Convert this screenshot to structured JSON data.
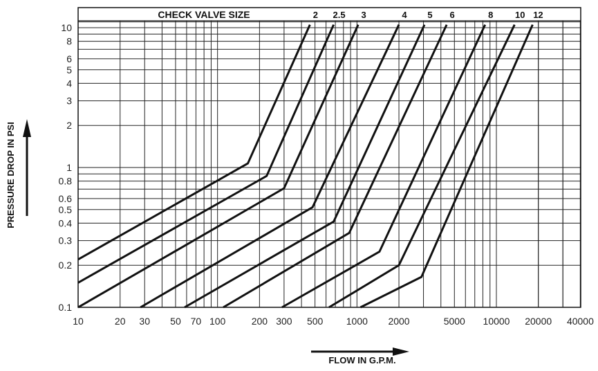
{
  "chart_data": {
    "type": "line",
    "title": "CHECK VALVE SIZE",
    "xlabel": "FLOW IN G.P.M.",
    "ylabel": "PRESSURE DROP IN PSI",
    "x_scale": "log",
    "y_scale": "log",
    "xlim": [
      10,
      40000
    ],
    "ylim": [
      0.1,
      13
    ],
    "x_ticks": [
      10,
      20,
      30,
      50,
      70,
      100,
      200,
      300,
      500,
      1000,
      2000,
      5000,
      10000,
      20000,
      40000
    ],
    "x_tick_labels": [
      "10",
      "20",
      "30",
      "50",
      "70",
      "100",
      "200",
      "300",
      "500",
      "1000",
      "2000",
      "5000",
      "10000",
      "20000",
      "40000"
    ],
    "y_ticks": [
      0.1,
      0.2,
      0.3,
      0.4,
      0.5,
      0.6,
      0.8,
      1,
      2,
      3,
      4,
      5,
      6,
      8,
      10
    ],
    "y_tick_labels": [
      "0.1",
      "0.2",
      "0.3",
      "0.4",
      "0.5",
      "0.6",
      "0.8",
      "1",
      "2",
      "3",
      "4",
      "5",
      "6",
      "8",
      "10"
    ],
    "grid": true,
    "series": [
      {
        "name": "2",
        "x": [
          10,
          165,
          460
        ],
        "y": [
          0.22,
          1.07,
          10.5
        ]
      },
      {
        "name": "2.5",
        "x": [
          10,
          225,
          680
        ],
        "y": [
          0.15,
          0.87,
          10.5
        ]
      },
      {
        "name": "3",
        "x": [
          10,
          300,
          1020
        ],
        "y": [
          0.1,
          0.71,
          10.5
        ]
      },
      {
        "name": "4",
        "x": [
          28,
          480,
          2000
        ],
        "y": [
          0.1,
          0.52,
          10.5
        ]
      },
      {
        "name": "5",
        "x": [
          58,
          680,
          3050
        ],
        "y": [
          0.1,
          0.41,
          10.5
        ]
      },
      {
        "name": "6",
        "x": [
          110,
          880,
          4400
        ],
        "y": [
          0.1,
          0.34,
          10.5
        ]
      },
      {
        "name": "8",
        "x": [
          290,
          1450,
          8300
        ],
        "y": [
          0.1,
          0.25,
          10.5
        ]
      },
      {
        "name": "10",
        "x": [
          630,
          2000,
          13500
        ],
        "y": [
          0.1,
          0.2,
          10.5
        ]
      },
      {
        "name": "12",
        "x": [
          1060,
          2900,
          18200
        ],
        "y": [
          0.1,
          0.165,
          10.5
        ]
      }
    ]
  }
}
